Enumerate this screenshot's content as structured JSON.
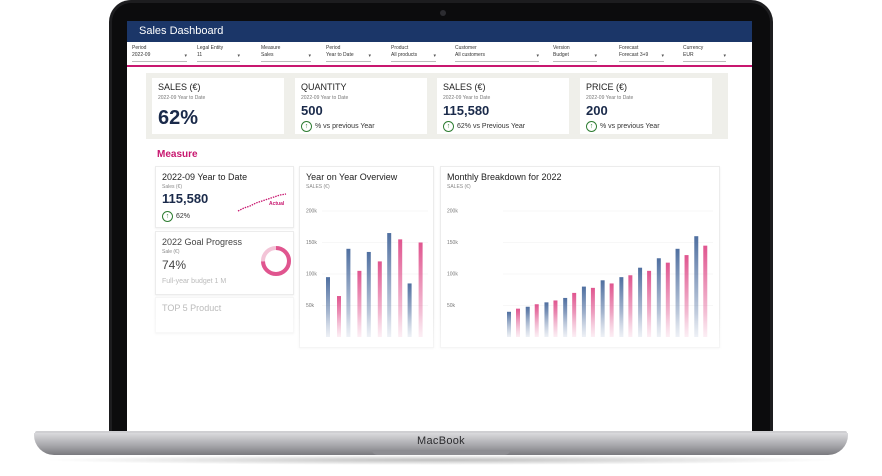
{
  "window": {
    "title": "Sales Dashboard"
  },
  "device": {
    "brand": "MacBook"
  },
  "filters": [
    {
      "label": "Period",
      "value": "2022-09"
    },
    {
      "label": "Legal Entity",
      "value": "11"
    },
    {
      "label": "Measure",
      "value": "Sales"
    },
    {
      "label": "Period",
      "value": "Year to Date"
    },
    {
      "label": "Product",
      "value": "All products"
    },
    {
      "label": "Customer",
      "value": "All customers"
    },
    {
      "label": "Version",
      "value": "Budget"
    },
    {
      "label": "Forecast",
      "value": "Forecast 3+9"
    },
    {
      "label": "Currency",
      "value": "EUR"
    }
  ],
  "kpis": [
    {
      "title": "SALES (€)",
      "subtitle": "2022-09 Year to Date",
      "value": "62%",
      "change": ""
    },
    {
      "title": "QUANTITY",
      "subtitle": "2022-09 Year to Date",
      "value": "500",
      "change": "% vs previous Year"
    },
    {
      "title": "SALES (€)",
      "subtitle": "2022-09 Year to Date",
      "value": "115,580",
      "change": "62% vs Previous Year"
    },
    {
      "title": "PRICE (€)",
      "subtitle": "2022-09 Year to Date",
      "value": "200",
      "change": "% vs previous Year"
    }
  ],
  "section": {
    "title": "Measure"
  },
  "ytd_card": {
    "title": "2022-09 Year to Date",
    "subtitle": "Sales (€)",
    "value": "115,580",
    "change": "62%",
    "spark_label": "Actual"
  },
  "goal_card": {
    "title": "2022 Goal Progress",
    "subtitle": "Sale (€)",
    "value": "74%",
    "footer": "Full-year budget 1 M",
    "progress": 0.74
  },
  "top_card": {
    "title": "TOP 5 Product"
  },
  "colors": {
    "primary": "#1b3668",
    "accent": "#c8176f",
    "bar_blue": "#4f6fa0",
    "bar_pink": "#e0558f"
  },
  "chart_data": [
    {
      "type": "bar",
      "title": "Year on Year Overview",
      "ylabel": "SALES (€)",
      "yticks": [
        "200k",
        "150k",
        "100k",
        "50k"
      ],
      "ylim": [
        0,
        200000
      ],
      "series": [
        {
          "values": [
            95000,
            140000,
            135000,
            165000,
            85000
          ]
        },
        {
          "values": [
            65000,
            105000,
            120000,
            155000,
            150000
          ]
        }
      ]
    },
    {
      "type": "bar",
      "title": "Monthly Breakdown for 2022",
      "ylabel": "SALES (€)",
      "yticks": [
        "200k",
        "150k",
        "100k",
        "50k"
      ],
      "ylim": [
        0,
        200000
      ],
      "series": [
        {
          "values": [
            40000,
            48000,
            55000,
            62000,
            80000,
            90000,
            95000,
            110000,
            125000,
            140000,
            160000
          ]
        },
        {
          "values": [
            45000,
            52000,
            58000,
            70000,
            78000,
            85000,
            98000,
            105000,
            118000,
            130000,
            145000
          ]
        }
      ]
    }
  ]
}
